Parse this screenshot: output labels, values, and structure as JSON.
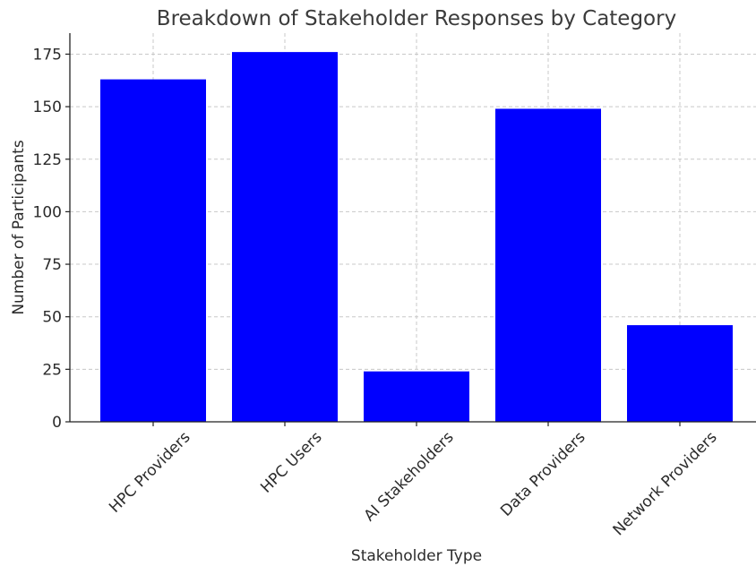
{
  "chart_data": {
    "type": "bar",
    "title": "Breakdown of Stakeholder Responses by Category",
    "xlabel": "Stakeholder Type",
    "ylabel": "Number of Participants",
    "categories": [
      "HPC Providers",
      "HPC Users",
      "AI Stakeholders",
      "Data Providers",
      "Network Providers"
    ],
    "values": [
      163,
      176,
      24,
      149,
      46
    ],
    "ylim": [
      0,
      185
    ],
    "yticks": [
      0,
      25,
      50,
      75,
      100,
      125,
      150,
      175
    ],
    "bar_color": "#0000ff",
    "grid": true,
    "grid_style": "dashed"
  }
}
